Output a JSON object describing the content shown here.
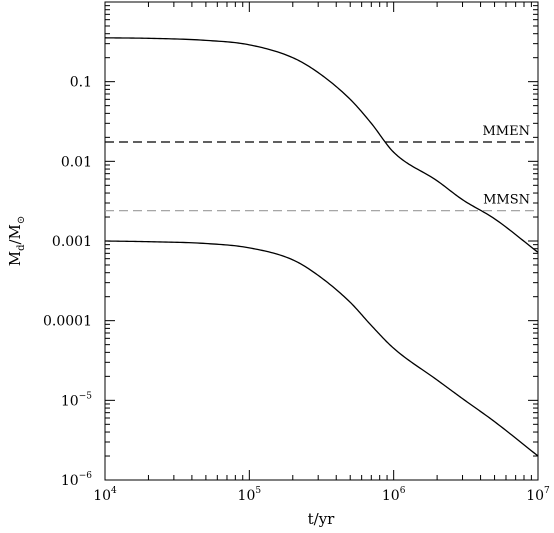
{
  "chart_data": {
    "type": "line",
    "xscale": "log",
    "yscale": "log",
    "xlim": [
      10000,
      10000000
    ],
    "ylim": [
      1e-06,
      1
    ],
    "grid": false,
    "xlabel": "t/yr",
    "ylabel": {
      "base": "M",
      "sub1": "d",
      "slash": "/",
      "base2": "M",
      "sub2": "⊙"
    },
    "x_ticks": [
      {
        "value": 10000,
        "base": "10",
        "exp": "4"
      },
      {
        "value": 100000,
        "base": "10",
        "exp": "5"
      },
      {
        "value": 1000000,
        "base": "10",
        "exp": "6"
      },
      {
        "value": 10000000,
        "base": "10",
        "exp": "7"
      }
    ],
    "y_ticks": [
      {
        "value": 0.1,
        "base": "0.1",
        "exp": ""
      },
      {
        "value": 0.01,
        "base": "0.01",
        "exp": ""
      },
      {
        "value": 0.001,
        "base": "0.001",
        "exp": ""
      },
      {
        "value": 0.0001,
        "base": "0.0001",
        "exp": ""
      },
      {
        "value": 1e-05,
        "base": "10",
        "exp": "−5"
      },
      {
        "value": 1e-06,
        "base": "10",
        "exp": "−6"
      }
    ],
    "series": [
      {
        "style": "solid",
        "color": "#000000",
        "x": [
          10000,
          20000,
          50000,
          100000,
          200000,
          300000,
          500000,
          700000,
          1000000,
          2000000,
          3000000,
          5000000,
          10000000
        ],
        "y": [
          0.355,
          0.35,
          0.33,
          0.29,
          0.2,
          0.13,
          0.06,
          0.03,
          0.013,
          0.0057,
          0.0033,
          0.0019,
          0.00072
        ]
      },
      {
        "style": "solid",
        "color": "#000000",
        "x": [
          10000,
          20000,
          50000,
          100000,
          200000,
          300000,
          500000,
          700000,
          1000000,
          2000000,
          3000000,
          5000000,
          10000000
        ],
        "y": [
          0.001,
          0.00098,
          0.00093,
          0.00082,
          0.00058,
          0.00037,
          0.00017,
          8.7e-05,
          4.5e-05,
          1.8e-05,
          1.05e-05,
          5.4e-06,
          2e-06
        ]
      }
    ],
    "reference_lines": [
      {
        "label": "MMEN",
        "y": 0.0175,
        "style": "dashed",
        "color": "#000000"
      },
      {
        "label": "MMSN",
        "y": 0.0024,
        "style": "dashed",
        "color": "#999999"
      }
    ]
  }
}
